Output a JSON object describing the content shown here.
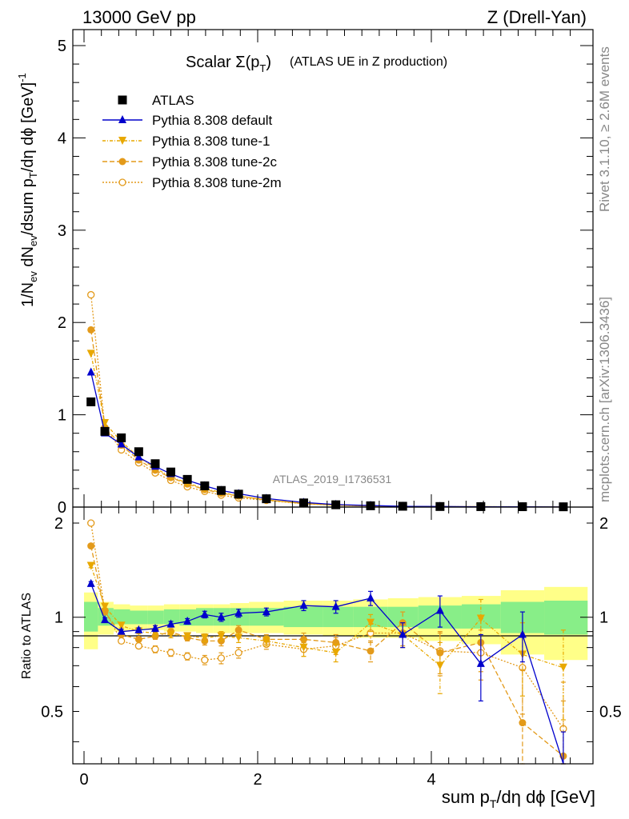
{
  "header": {
    "left": "13000 GeV pp",
    "right": "Z (Drell-Yan)"
  },
  "side_labels": {
    "rivet": "Rivet 3.1.10, ≥ 2.6M events",
    "mcplots": "mcplots.cern.ch [arXiv:1306.3436]"
  },
  "chart_data": {
    "type": "scatter",
    "title_main": "Scalar Σ(p",
    "title_sub": "T",
    "title_close": ")",
    "title_rest": "(ATLAS UE in Z production)",
    "analysis_label": "ATLAS_2019_I1736531",
    "main_panel": {
      "ylabel": "1/N_ev dN_ev/dsum p_T/dη dϕ [GeV]^-1",
      "ylim": [
        0,
        5.1
      ],
      "yticks": [
        "0",
        "1",
        "2",
        "3",
        "4",
        "5"
      ],
      "x": [
        0.08,
        0.24,
        0.43,
        0.63,
        0.82,
        1.0,
        1.19,
        1.39,
        1.58,
        1.78,
        2.1,
        2.53,
        2.9,
        3.3,
        3.67,
        4.1,
        4.57,
        5.05,
        5.52
      ],
      "series": [
        {
          "name": "ATLAS",
          "color": "#000000",
          "marker": "square",
          "values": [
            1.14,
            0.82,
            0.75,
            0.6,
            0.47,
            0.38,
            0.3,
            0.23,
            0.18,
            0.14,
            0.09,
            0.045,
            0.025,
            0.014,
            0.009,
            0.006,
            0.005,
            0.004,
            0.003
          ]
        },
        {
          "name": "Pythia 8.308 default",
          "color": "#0000cc",
          "marker": "triangle-up",
          "dash": "",
          "values": [
            1.46,
            0.8,
            0.68,
            0.54,
            0.44,
            0.36,
            0.29,
            0.23,
            0.18,
            0.145,
            0.093,
            0.05,
            0.027,
            0.017,
            0.008,
            0.0065,
            0.0035,
            0.0035,
            0.001
          ]
        },
        {
          "name": "Pythia 8.308 tune-1",
          "color": "#e8a800",
          "marker": "triangle-down",
          "dash": "4 2 1 2",
          "values": [
            1.66,
            0.91,
            0.71,
            0.54,
            0.42,
            0.33,
            0.26,
            0.2,
            0.16,
            0.12,
            0.078,
            0.039,
            0.02,
            0.013,
            0.008,
            0.004,
            0.005,
            0.003,
            0.002
          ]
        },
        {
          "name": "Pythia 8.308 tune-2c",
          "color": "#e39a1a",
          "marker": "circle",
          "dash": "6 3",
          "values": [
            1.92,
            0.86,
            0.67,
            0.51,
            0.4,
            0.32,
            0.25,
            0.19,
            0.15,
            0.12,
            0.077,
            0.038,
            0.021,
            0.011,
            0.0085,
            0.0045,
            0.0042,
            0.0018,
            0.001
          ]
        },
        {
          "name": "Pythia 8.308 tune-2m",
          "color": "#e39a1a",
          "marker": "open-circle",
          "dash": "2 2",
          "values": [
            2.3,
            0.86,
            0.62,
            0.48,
            0.37,
            0.29,
            0.22,
            0.17,
            0.13,
            0.1,
            0.073,
            0.035,
            0.02,
            0.0125,
            0.008,
            0.0048,
            0.004,
            0.0028,
            0.0013
          ]
        }
      ],
      "legend_position": "top-left"
    },
    "ratio_panel": {
      "ylabel": "Ratio to ATLAS",
      "ylim": [
        0.34,
        2.25
      ],
      "yticks": [
        "0.5",
        "1",
        "2"
      ],
      "xlabel": "sum p_T/dη dϕ [GeV]",
      "xlim": [
        -0.05,
        5.85
      ],
      "xticks": [
        "0",
        "2",
        "4"
      ],
      "bands": [
        {
          "x": [
            0.0,
            0.16
          ],
          "green": [
            0.9,
            1.12
          ],
          "yellow": [
            0.79,
            1.2
          ]
        },
        {
          "x": [
            0.16,
            0.34
          ],
          "green": [
            0.94,
            1.07
          ],
          "yellow": [
            0.88,
            1.12
          ]
        },
        {
          "x": [
            0.34,
            0.53
          ],
          "green": [
            0.95,
            1.06
          ],
          "yellow": [
            0.9,
            1.1
          ]
        },
        {
          "x": [
            0.53,
            0.73
          ],
          "green": [
            0.95,
            1.05
          ],
          "yellow": [
            0.91,
            1.09
          ]
        },
        {
          "x": [
            0.73,
            0.92
          ],
          "green": [
            0.95,
            1.05
          ],
          "yellow": [
            0.91,
            1.09
          ]
        },
        {
          "x": [
            0.92,
            1.1
          ],
          "green": [
            0.95,
            1.06
          ],
          "yellow": [
            0.9,
            1.1
          ]
        },
        {
          "x": [
            1.1,
            1.29
          ],
          "green": [
            0.94,
            1.06
          ],
          "yellow": [
            0.9,
            1.1
          ]
        },
        {
          "x": [
            1.29,
            1.49
          ],
          "green": [
            0.94,
            1.07
          ],
          "yellow": [
            0.89,
            1.1
          ]
        },
        {
          "x": [
            1.49,
            1.68
          ],
          "green": [
            0.94,
            1.07
          ],
          "yellow": [
            0.89,
            1.1
          ]
        },
        {
          "x": [
            1.68,
            1.9
          ],
          "green": [
            0.94,
            1.07
          ],
          "yellow": [
            0.89,
            1.11
          ]
        },
        {
          "x": [
            1.9,
            2.3
          ],
          "green": [
            0.94,
            1.07
          ],
          "yellow": [
            0.89,
            1.12
          ]
        },
        {
          "x": [
            2.3,
            2.75
          ],
          "green": [
            0.93,
            1.08
          ],
          "yellow": [
            0.88,
            1.13
          ]
        },
        {
          "x": [
            2.75,
            3.1
          ],
          "green": [
            0.93,
            1.08
          ],
          "yellow": [
            0.87,
            1.13
          ]
        },
        {
          "x": [
            3.1,
            3.5
          ],
          "green": [
            0.93,
            1.08
          ],
          "yellow": [
            0.86,
            1.14
          ]
        },
        {
          "x": [
            3.5,
            3.85
          ],
          "green": [
            0.93,
            1.08
          ],
          "yellow": [
            0.86,
            1.15
          ]
        },
        {
          "x": [
            3.85,
            4.35
          ],
          "green": [
            0.92,
            1.09
          ],
          "yellow": [
            0.84,
            1.16
          ]
        },
        {
          "x": [
            4.35,
            4.8
          ],
          "green": [
            0.92,
            1.1
          ],
          "yellow": [
            0.82,
            1.17
          ]
        },
        {
          "x": [
            4.8,
            5.3
          ],
          "green": [
            0.89,
            1.12
          ],
          "yellow": [
            0.76,
            1.22
          ]
        },
        {
          "x": [
            5.3,
            5.8
          ],
          "green": [
            0.88,
            1.13
          ],
          "yellow": [
            0.73,
            1.25
          ]
        }
      ],
      "series": [
        {
          "name": "Pythia 8.308 default",
          "values": [
            1.28,
            0.98,
            0.9,
            0.91,
            0.92,
            0.95,
            0.97,
            1.02,
            1.0,
            1.03,
            1.04,
            1.09,
            1.08,
            1.15,
            0.88,
            1.05,
            0.71,
            0.88,
            0.33
          ],
          "errors": [
            0.02,
            0.015,
            0.015,
            0.015,
            0.02,
            0.02,
            0.02,
            0.025,
            0.03,
            0.03,
            0.03,
            0.04,
            0.05,
            0.06,
            0.08,
            0.12,
            0.17,
            0.16,
            0.1
          ]
        },
        {
          "name": "Pythia 8.308 tune-1",
          "values": [
            1.46,
            1.08,
            0.94,
            0.9,
            0.89,
            0.88,
            0.87,
            0.86,
            0.87,
            0.86,
            0.84,
            0.8,
            0.77,
            0.96,
            0.88,
            0.7,
            0.99,
            0.76,
            0.69
          ],
          "errors": [
            0.02,
            0.015,
            0.015,
            0.015,
            0.02,
            0.02,
            0.02,
            0.025,
            0.03,
            0.03,
            0.03,
            0.05,
            0.05,
            0.06,
            0.08,
            0.13,
            0.15,
            0.2,
            0.22
          ]
        },
        {
          "name": "Pythia 8.308 tune-2c",
          "values": [
            1.69,
            1.04,
            0.88,
            0.85,
            0.87,
            0.9,
            0.86,
            0.84,
            0.84,
            0.91,
            0.85,
            0.85,
            0.83,
            0.78,
            0.96,
            0.77,
            0.83,
            0.46,
            0.36
          ],
          "errors": [
            0.02,
            0.015,
            0.015,
            0.015,
            0.02,
            0.02,
            0.02,
            0.025,
            0.03,
            0.03,
            0.03,
            0.04,
            0.05,
            0.06,
            0.08,
            0.12,
            0.16,
            0.22,
            0.18
          ]
        },
        {
          "name": "Pythia 8.308 tune-2m",
          "values": [
            2.0,
            1.05,
            0.84,
            0.81,
            0.79,
            0.77,
            0.75,
            0.73,
            0.74,
            0.77,
            0.82,
            0.79,
            0.81,
            0.89,
            0.89,
            0.78,
            0.77,
            0.69,
            0.44
          ],
          "errors": [
            0.02,
            0.015,
            0.015,
            0.015,
            0.02,
            0.02,
            0.02,
            0.025,
            0.03,
            0.03,
            0.03,
            0.04,
            0.05,
            0.06,
            0.08,
            0.12,
            0.14,
            0.2,
            0.18
          ]
        }
      ]
    }
  }
}
